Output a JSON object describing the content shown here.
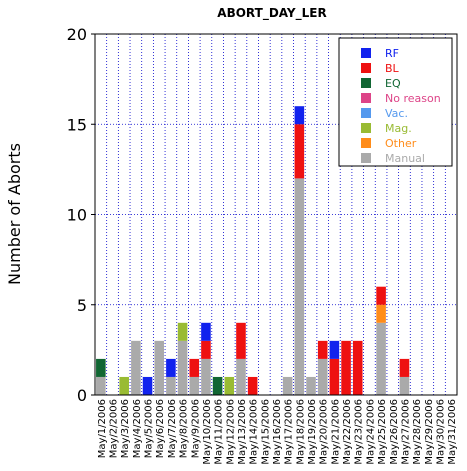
{
  "chart_data": {
    "type": "bar",
    "stacked": true,
    "title": "ABORT_DAY_LER",
    "xlabel": "",
    "ylabel": "Number of Aborts",
    "ylim": [
      0,
      20
    ],
    "yticks": [
      0,
      5,
      10,
      15,
      20
    ],
    "grid": true,
    "legend_position": "top-right",
    "categories": [
      "May/1/2006",
      "May/2/2006",
      "May/3/2006",
      "May/4/2006",
      "May/5/2006",
      "May/6/2006",
      "May/7/2006",
      "May/8/2006",
      "May/9/2006",
      "May/10/2006",
      "May/11/2006",
      "May/12/2006",
      "May/13/2006",
      "May/14/2006",
      "May/15/2006",
      "May/16/2006",
      "May/17/2006",
      "May/18/2006",
      "May/19/2006",
      "May/20/2006",
      "May/21/2006",
      "May/22/2006",
      "May/23/2006",
      "May/24/2006",
      "May/25/2006",
      "May/26/2006",
      "May/27/2006",
      "May/28/2006",
      "May/29/2006",
      "May/30/2006",
      "May/31/2006"
    ],
    "series": [
      {
        "name": "Manual",
        "color": "#aaaaaa",
        "values": [
          1,
          0,
          0,
          3,
          0,
          3,
          1,
          3,
          1,
          2,
          0,
          0,
          2,
          0,
          0,
          0,
          1,
          12,
          1,
          2,
          0,
          0,
          0,
          0,
          4,
          0,
          1,
          0,
          0,
          0,
          0
        ]
      },
      {
        "name": "Other",
        "color": "#ff8c1a",
        "values": [
          0,
          0,
          0,
          0,
          0,
          0,
          0,
          0,
          0,
          0,
          0,
          0,
          0,
          0,
          0,
          0,
          0,
          0,
          0,
          0,
          0,
          0,
          0,
          0,
          1,
          0,
          0,
          0,
          0,
          0,
          0
        ]
      },
      {
        "name": "Mag.",
        "color": "#99bb33",
        "values": [
          0,
          0,
          1,
          0,
          0,
          0,
          0,
          1,
          0,
          0,
          0,
          1,
          0,
          0,
          0,
          0,
          0,
          0,
          0,
          0,
          0,
          0,
          0,
          0,
          0,
          0,
          0,
          0,
          0,
          0,
          0
        ]
      },
      {
        "name": "Vac.",
        "color": "#5599ee",
        "values": [
          0,
          0,
          0,
          0,
          0,
          0,
          0,
          0,
          0,
          0,
          0,
          0,
          0,
          0,
          0,
          0,
          0,
          0,
          0,
          0,
          0,
          0,
          0,
          0,
          0,
          0,
          0,
          0,
          0,
          0,
          0
        ]
      },
      {
        "name": "No reason",
        "color": "#dd4488",
        "values": [
          0,
          0,
          0,
          0,
          0,
          0,
          0,
          0,
          0,
          0,
          0,
          0,
          0,
          0,
          0,
          0,
          0,
          0,
          0,
          0,
          0,
          0,
          0,
          0,
          0,
          0,
          0,
          0,
          0,
          0,
          0
        ]
      },
      {
        "name": "EQ",
        "color": "#116633",
        "values": [
          1,
          0,
          0,
          0,
          0,
          0,
          0,
          0,
          0,
          0,
          1,
          0,
          0,
          0,
          0,
          0,
          0,
          0,
          0,
          0,
          0,
          0,
          0,
          0,
          0,
          0,
          0,
          0,
          0,
          0,
          0
        ]
      },
      {
        "name": "BL",
        "color": "#ee1111",
        "values": [
          0,
          0,
          0,
          0,
          0,
          0,
          0,
          0,
          1,
          1,
          0,
          0,
          2,
          1,
          0,
          0,
          0,
          3,
          0,
          1,
          2,
          3,
          3,
          0,
          1,
          0,
          1,
          0,
          0,
          0,
          0
        ]
      },
      {
        "name": "RF",
        "color": "#1122ee",
        "values": [
          0,
          0,
          0,
          0,
          1,
          0,
          1,
          0,
          0,
          1,
          0,
          0,
          0,
          0,
          0,
          0,
          0,
          1,
          0,
          0,
          1,
          0,
          0,
          0,
          0,
          0,
          0,
          0,
          0,
          0,
          0
        ]
      }
    ],
    "legend_order": [
      "RF",
      "BL",
      "EQ",
      "No reason",
      "Vac.",
      "Mag.",
      "Other",
      "Manual"
    ]
  }
}
